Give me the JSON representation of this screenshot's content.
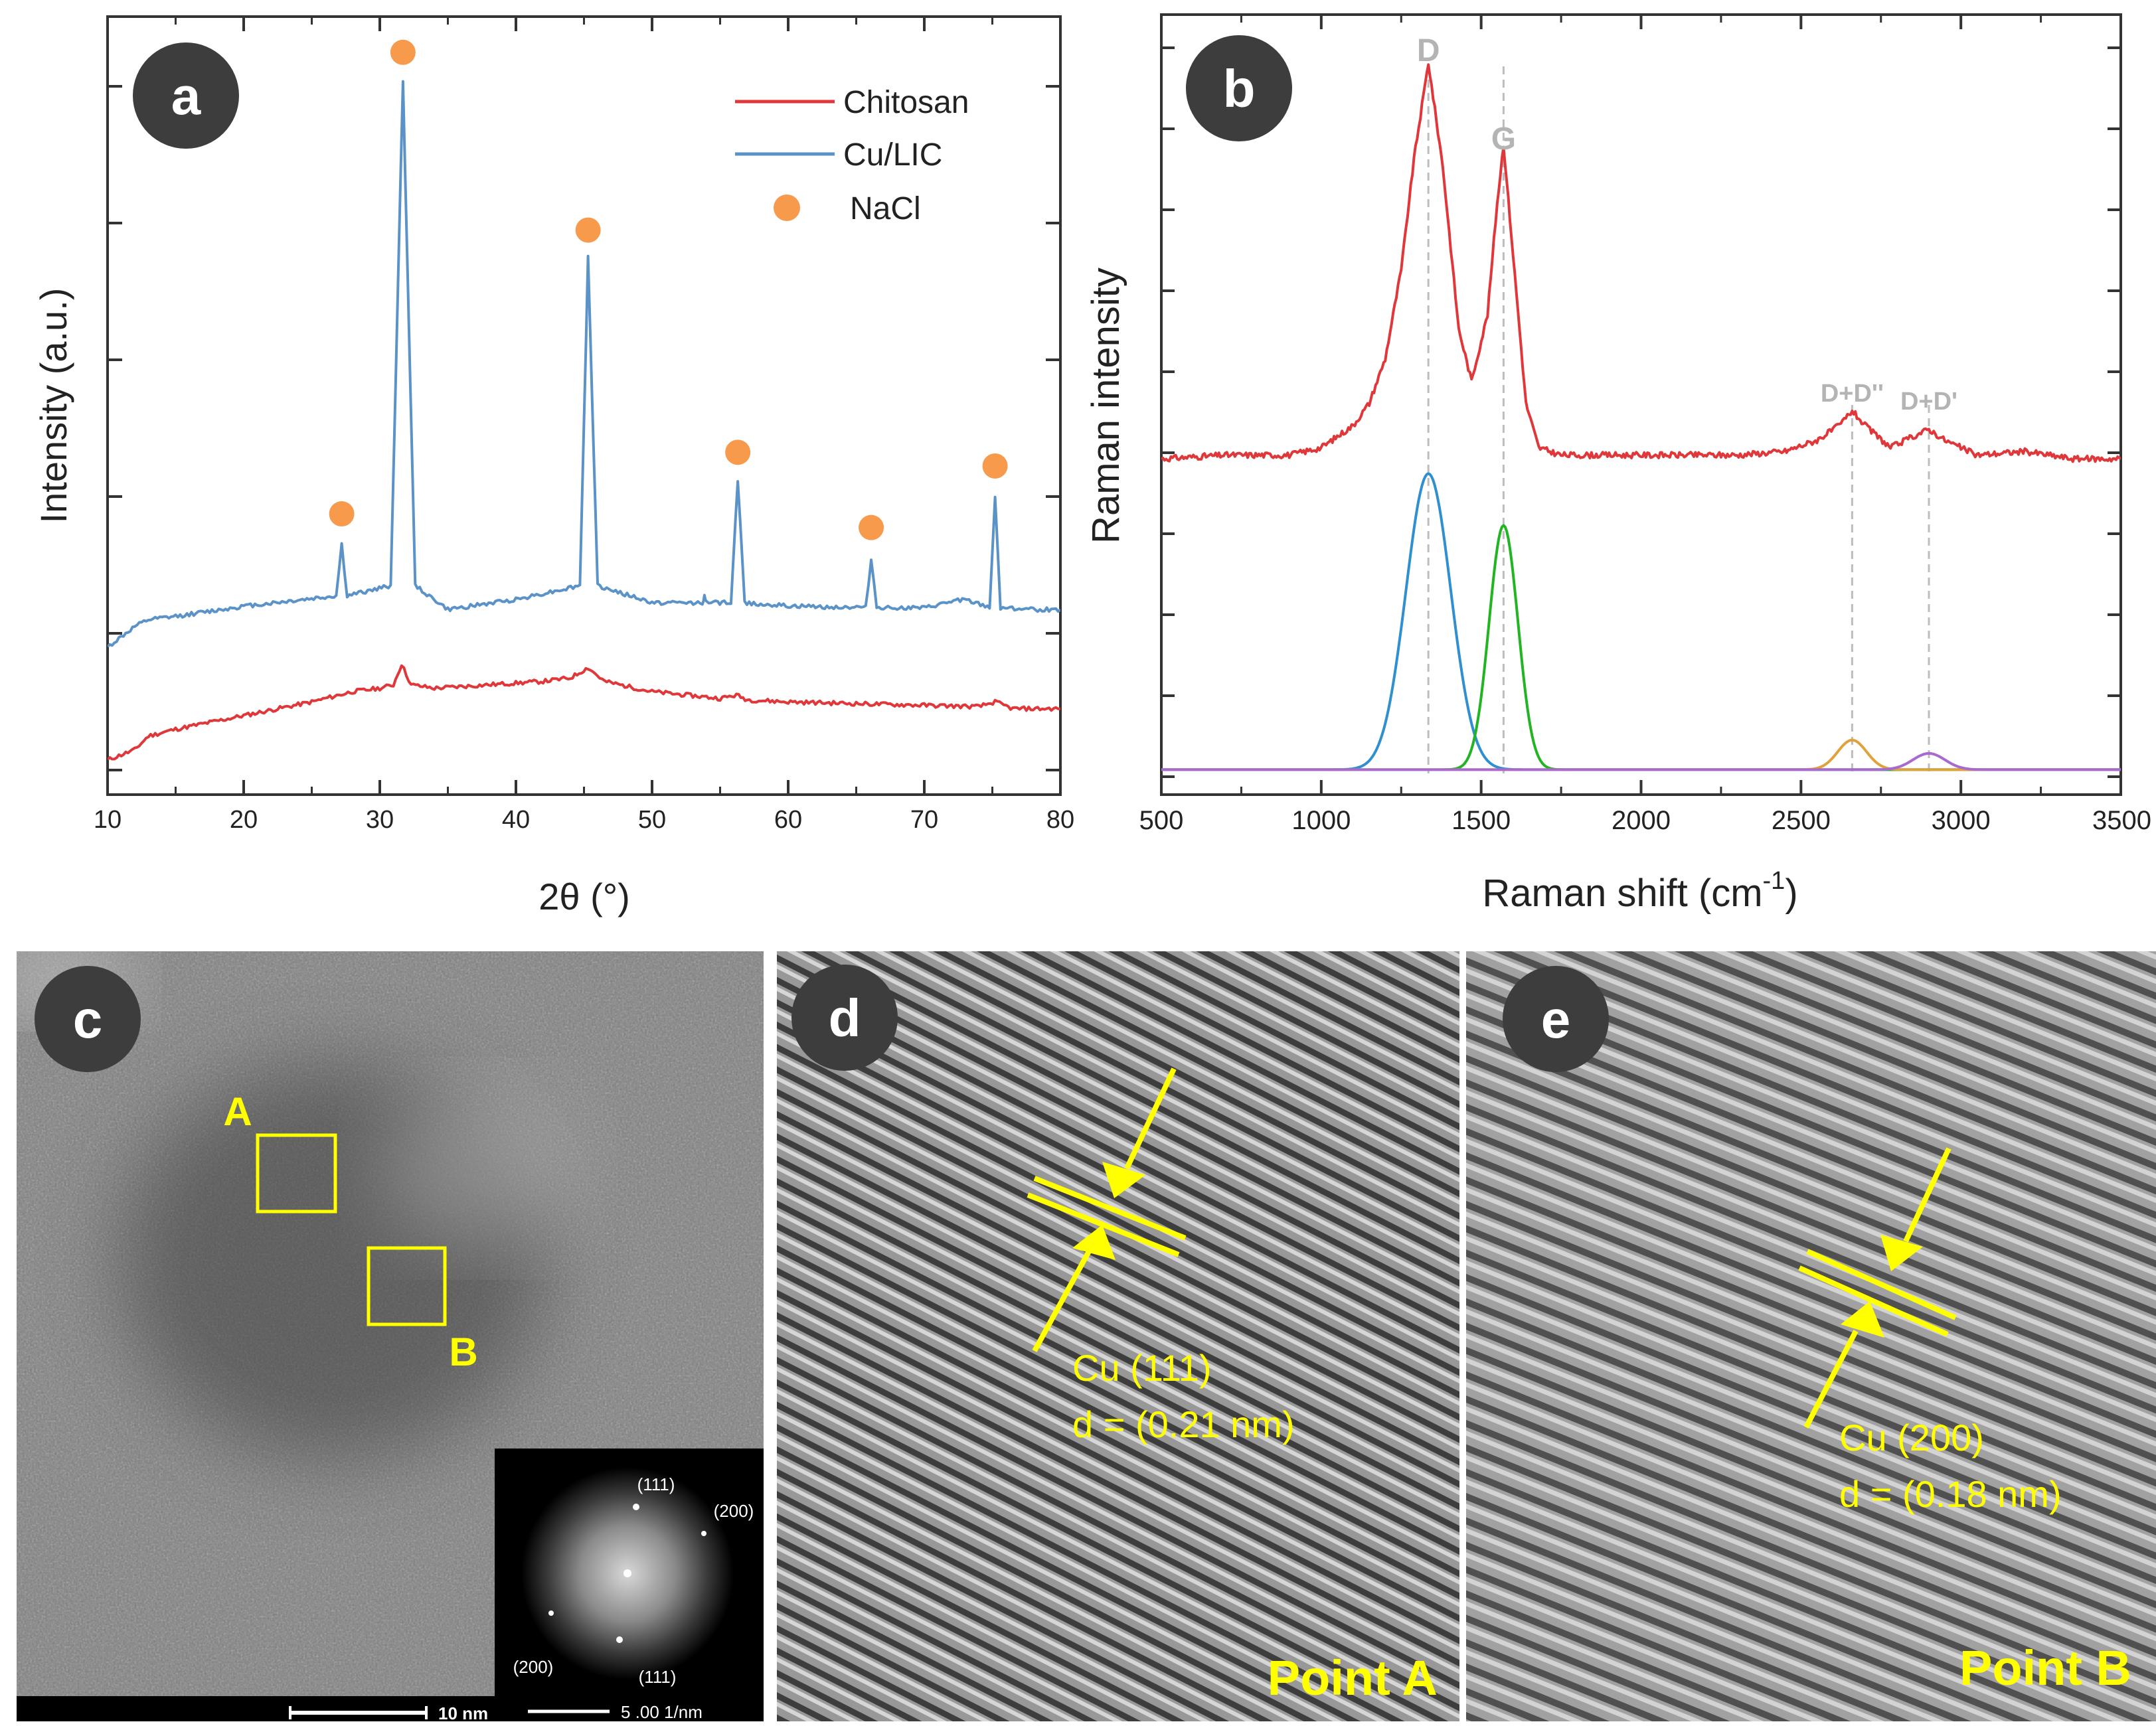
{
  "panels": {
    "a": {
      "badge": "a"
    },
    "b": {
      "badge": "b"
    },
    "c": {
      "badge": "c",
      "box_a": "A",
      "box_b": "B",
      "scale_bar": "10 nm",
      "fft_labels": [
        "(111)",
        "(200)",
        "(200)",
        "(111)"
      ],
      "fft_scale": "5 .00 1/nm"
    },
    "d": {
      "badge": "d",
      "plane": "Cu (111)",
      "spacing": "d = (0.21 nm)",
      "point": "Point A"
    },
    "e": {
      "badge": "e",
      "plane": "Cu (200)",
      "spacing": "d = (0.18 nm)",
      "point": "Point B"
    }
  },
  "colors": {
    "chitosan": "#e0383a",
    "cu_lic": "#5b93c8",
    "nacl": "#f79a4c",
    "annot": "#ffff00",
    "d_fit": "#2f8fcf",
    "g_fit": "#22b422",
    "dd2_fit": "#e0a23a",
    "dd1_fit": "#a86ad0"
  },
  "chart_data": [
    {
      "type": "line",
      "panel": "a",
      "title": "",
      "xlabel": "2θ (°)",
      "ylabel": "Intensity (a.u.)",
      "xlim": [
        10,
        80
      ],
      "xticks": [
        10,
        20,
        30,
        40,
        50,
        60,
        70,
        80
      ],
      "ylim": [
        0,
        1
      ],
      "legend": [
        {
          "name": "Chitosan",
          "marker": "line",
          "color": "#e0383a"
        },
        {
          "name": "Cu/LIC",
          "marker": "line",
          "color": "#5b93c8"
        },
        {
          "name": "NaCl",
          "marker": "dot",
          "color": "#f79a4c"
        }
      ],
      "legend_position": "top-right",
      "series": [
        {
          "name": "Chitosan",
          "color": "#e0383a",
          "x": [
            10,
            12,
            13,
            15,
            20,
            25,
            28,
            30,
            31,
            31.6,
            32.3,
            34,
            38,
            42,
            44,
            45.3,
            46.5,
            50,
            55,
            56.2,
            57,
            60,
            70,
            74,
            75.2,
            76.5,
            80
          ],
          "y": [
            0.005,
            0.02,
            0.04,
            0.05,
            0.07,
            0.09,
            0.105,
            0.11,
            0.115,
            0.145,
            0.115,
            0.11,
            0.115,
            0.12,
            0.125,
            0.14,
            0.12,
            0.105,
            0.095,
            0.1,
            0.093,
            0.09,
            0.085,
            0.083,
            0.09,
            0.08,
            0.08
          ]
        },
        {
          "name": "Cu/LIC",
          "color": "#5b93c8",
          "x": [
            10,
            12,
            13,
            15,
            20,
            26.8,
            27.2,
            27.6,
            30.8,
            31.7,
            32.6,
            35,
            40,
            44.7,
            45.3,
            46,
            50,
            53.7,
            53.85,
            54,
            55.8,
            56.3,
            56.8,
            60,
            65.7,
            66.1,
            66.5,
            70,
            72.8,
            74.8,
            75.2,
            75.6,
            78,
            80
          ],
          "y": [
            0.17,
            0.2,
            0.21,
            0.215,
            0.23,
            0.245,
            0.32,
            0.245,
            0.26,
            1.0,
            0.26,
            0.225,
            0.24,
            0.26,
            0.74,
            0.26,
            0.235,
            0.235,
            0.245,
            0.235,
            0.235,
            0.415,
            0.235,
            0.23,
            0.228,
            0.3,
            0.228,
            0.227,
            0.24,
            0.228,
            0.39,
            0.228,
            0.225,
            0.225
          ]
        }
      ],
      "markers": {
        "name": "NaCl",
        "x": [
          27.2,
          31.7,
          45.3,
          56.3,
          66.1,
          75.2
        ],
        "y": [
          0.365,
          1.04,
          0.78,
          0.455,
          0.345,
          0.435
        ]
      }
    },
    {
      "type": "line",
      "panel": "b",
      "title": "",
      "xlabel": "Raman shift (cm",
      "xlabel_sup": "-1",
      "xlabel_suffix": ")",
      "ylabel": "Raman intensity",
      "xlim": [
        500,
        3500
      ],
      "xticks": [
        500,
        1000,
        1500,
        2000,
        2500,
        3000,
        3500
      ],
      "ylim": [
        0,
        1
      ],
      "peak_labels": [
        {
          "text": "D",
          "x": 1335
        },
        {
          "text": "G",
          "x": 1570
        },
        {
          "text": "D+D''",
          "x": 2660
        },
        {
          "text": "D+D'",
          "x": 2900
        }
      ],
      "series": [
        {
          "name": "Raman spectrum",
          "color": "#e0383a",
          "x": [
            500,
            700,
            900,
            1000,
            1100,
            1150,
            1200,
            1250,
            1290,
            1335,
            1380,
            1430,
            1470,
            1520,
            1550,
            1570,
            1600,
            1640,
            1680,
            1750,
            1900,
            2100,
            2300,
            2450,
            2550,
            2620,
            2660,
            2700,
            2780,
            2850,
            2900,
            2950,
            3050,
            3200,
            3350,
            3500
          ],
          "y": [
            0.425,
            0.43,
            0.43,
            0.44,
            0.47,
            0.5,
            0.56,
            0.68,
            0.83,
            0.96,
            0.82,
            0.6,
            0.53,
            0.62,
            0.77,
            0.85,
            0.7,
            0.5,
            0.44,
            0.43,
            0.43,
            0.43,
            0.43,
            0.435,
            0.45,
            0.47,
            0.49,
            0.47,
            0.44,
            0.455,
            0.465,
            0.45,
            0.43,
            0.435,
            0.425,
            0.425
          ]
        },
        {
          "name": "D fit",
          "color": "#2f8fcf",
          "peak": {
            "center": 1335,
            "sigma": 70,
            "amplitude": 0.4,
            "baseline": 0.005
          }
        },
        {
          "name": "G fit",
          "color": "#22b422",
          "peak": {
            "center": 1570,
            "sigma": 45,
            "amplitude": 0.33,
            "baseline": 0.005
          }
        },
        {
          "name": "D+D'' fit",
          "color": "#e0a23a",
          "peak": {
            "center": 2660,
            "sigma": 45,
            "amplitude": 0.04,
            "baseline": 0.005
          }
        },
        {
          "name": "D+D' fit",
          "color": "#a86ad0",
          "peak": {
            "center": 2900,
            "sigma": 50,
            "amplitude": 0.022,
            "baseline": 0.005
          }
        }
      ],
      "guide_lines_x": [
        1335,
        1570,
        2660,
        2900
      ]
    }
  ]
}
